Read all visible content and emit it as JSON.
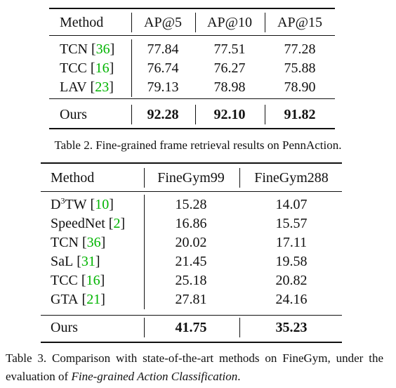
{
  "tables": [
    {
      "columns": [
        "Method",
        "AP@5",
        "AP@10",
        "AP@15"
      ],
      "rows": [
        {
          "method": [
            {
              "text": "TCN"
            }
          ],
          "cite": [
            "[",
            "36",
            "]"
          ],
          "values": [
            "77.84",
            "77.51",
            "77.28"
          ]
        },
        {
          "method": [
            {
              "text": "TCC"
            }
          ],
          "cite": [
            "[",
            "16",
            "]"
          ],
          "values": [
            "76.74",
            "76.27",
            "75.88"
          ]
        },
        {
          "method": [
            {
              "text": "LAV"
            }
          ],
          "cite": [
            "[",
            "23",
            "]"
          ],
          "values": [
            "79.13",
            "78.98",
            "78.90"
          ]
        },
        {
          "method": [
            {
              "text": "Ours"
            }
          ],
          "bold": true,
          "values": [
            "92.28",
            "92.10",
            "91.82"
          ]
        }
      ],
      "caption": [
        {
          "text": "Table 2. Fine-grained frame retrieval results on PennAction."
        }
      ]
    },
    {
      "columns": [
        "Method",
        "FineGym99",
        "FineGym288"
      ],
      "rows": [
        {
          "method": [
            {
              "text": "D"
            },
            {
              "text": "3",
              "sup": true
            },
            {
              "text": "TW"
            }
          ],
          "cite": [
            "[",
            "10",
            "]"
          ],
          "values": [
            "15.28",
            "14.07"
          ]
        },
        {
          "method": [
            {
              "text": "SpeedNet"
            }
          ],
          "cite": [
            "[",
            "2",
            "]"
          ],
          "values": [
            "16.86",
            "15.57"
          ]
        },
        {
          "method": [
            {
              "text": "TCN"
            }
          ],
          "cite": [
            "[",
            "36",
            "]"
          ],
          "values": [
            "20.02",
            "17.11"
          ]
        },
        {
          "method": [
            {
              "text": "SaL"
            }
          ],
          "cite": [
            "[",
            "31",
            "]"
          ],
          "values": [
            "21.45",
            "19.58"
          ]
        },
        {
          "method": [
            {
              "text": "TCC"
            }
          ],
          "cite": [
            "[",
            "16",
            "]"
          ],
          "values": [
            "25.18",
            "20.82"
          ]
        },
        {
          "method": [
            {
              "text": "GTA"
            }
          ],
          "cite": [
            "[",
            "21",
            "]"
          ],
          "values": [
            "27.81",
            "24.16"
          ]
        },
        {
          "method": [
            {
              "text": "Ours"
            }
          ],
          "bold": true,
          "values": [
            "41.75",
            "35.23"
          ]
        }
      ],
      "caption": [
        {
          "text": "Table 3.  Comparison with state-of-the-art methods on FineGym, under the evaluation of "
        },
        {
          "text": "Fine-grained Action Classification",
          "italic": true
        },
        {
          "text": "."
        }
      ]
    }
  ]
}
